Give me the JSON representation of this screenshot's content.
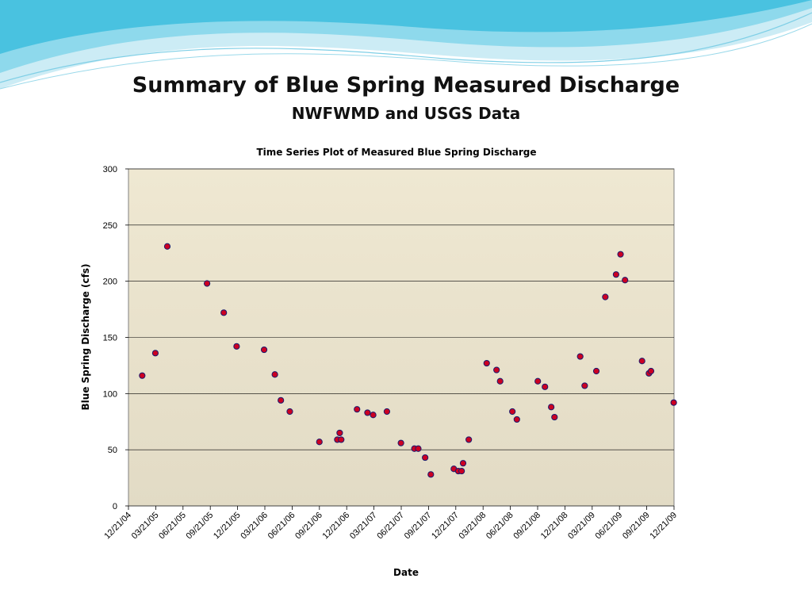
{
  "slide": {
    "title": "Summary of Blue Spring Measured Discharge",
    "subtitle": "NWFWMD and USGS Data"
  },
  "colors": {
    "plot_bg_top": "#efe8d2",
    "plot_bg_bottom": "#e2dbc5",
    "gridline": "#000000",
    "marker_fill": "#cc0022",
    "marker_stroke": "#1a1a6e",
    "wave_light": "#bde8f2",
    "wave_mid": "#5cc9e3",
    "wave_dark": "#1c9cc4"
  },
  "chart_data": {
    "type": "scatter",
    "title": "Time Series Plot of Measured Blue Spring Discharge",
    "xlabel": "Date",
    "ylabel": "Blue Spring Discharge (cfs)",
    "ylim": [
      0,
      300
    ],
    "yticks": [
      0,
      50,
      100,
      150,
      200,
      250,
      300
    ],
    "xlim": [
      "2004-12-21",
      "2009-12-21"
    ],
    "xticks": [
      "12/21/04",
      "03/21/05",
      "06/21/05",
      "09/21/05",
      "12/21/05",
      "03/21/06",
      "06/21/06",
      "09/21/06",
      "12/21/06",
      "03/21/07",
      "06/21/07",
      "09/21/07",
      "12/21/07",
      "03/21/08",
      "06/21/08",
      "09/21/08",
      "12/21/08",
      "03/21/09",
      "06/21/09",
      "09/21/09",
      "12/21/09"
    ],
    "grid": "horizontal",
    "legend": "none",
    "series": [
      {
        "points": [
          [
            "2005-02-05",
            116
          ],
          [
            "2005-03-21",
            136
          ],
          [
            "2005-04-30",
            231
          ],
          [
            "2005-09-10",
            198
          ],
          [
            "2005-11-05",
            172
          ],
          [
            "2005-12-18",
            142
          ],
          [
            "2006-03-20",
            139
          ],
          [
            "2006-04-25",
            117
          ],
          [
            "2006-05-15",
            94
          ],
          [
            "2006-06-14",
            84
          ],
          [
            "2006-09-21",
            57
          ],
          [
            "2006-11-20",
            59
          ],
          [
            "2006-11-28",
            65
          ],
          [
            "2006-12-03",
            59
          ],
          [
            "2007-01-25",
            86
          ],
          [
            "2007-03-01",
            83
          ],
          [
            "2007-03-20",
            81
          ],
          [
            "2007-05-05",
            84
          ],
          [
            "2007-06-21",
            56
          ],
          [
            "2007-08-05",
            51
          ],
          [
            "2007-08-18",
            51
          ],
          [
            "2007-09-10",
            43
          ],
          [
            "2007-09-29",
            28
          ],
          [
            "2007-12-15",
            33
          ],
          [
            "2007-12-30",
            31
          ],
          [
            "2008-01-10",
            31
          ],
          [
            "2008-01-15",
            38
          ],
          [
            "2008-02-03",
            59
          ],
          [
            "2008-04-03",
            127
          ],
          [
            "2008-05-06",
            121
          ],
          [
            "2008-05-18",
            111
          ],
          [
            "2008-06-28",
            84
          ],
          [
            "2008-07-13",
            77
          ],
          [
            "2008-09-21",
            111
          ],
          [
            "2008-10-15",
            106
          ],
          [
            "2008-11-05",
            88
          ],
          [
            "2008-11-16",
            79
          ],
          [
            "2009-02-10",
            133
          ],
          [
            "2009-02-25",
            107
          ],
          [
            "2009-04-05",
            120
          ],
          [
            "2009-05-05",
            186
          ],
          [
            "2009-06-10",
            206
          ],
          [
            "2009-06-25",
            224
          ],
          [
            "2009-07-10",
            201
          ],
          [
            "2009-09-05",
            129
          ],
          [
            "2009-09-28",
            118
          ],
          [
            "2009-10-05",
            120
          ],
          [
            "2009-12-20",
            92
          ]
        ]
      }
    ]
  }
}
